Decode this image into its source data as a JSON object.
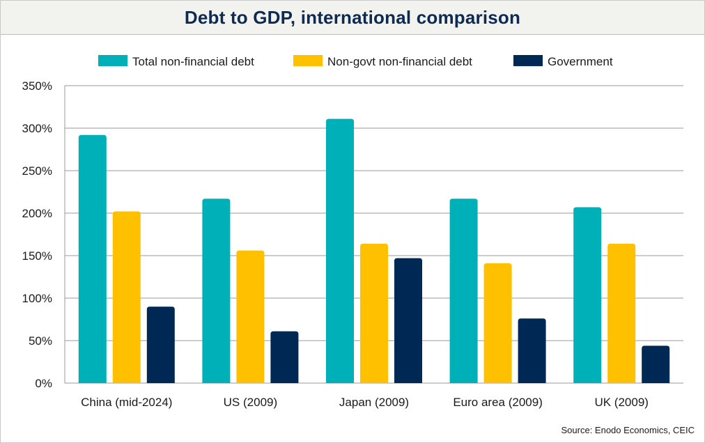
{
  "title": "Debt to GDP, international comparison",
  "source": "Source: Enodo Economics, CEIC",
  "chart_data": {
    "type": "bar",
    "title": "Debt to GDP, international comparison",
    "xlabel": "",
    "ylabel": "",
    "ylim": [
      0,
      350
    ],
    "y_ticks": [
      "0%",
      "50%",
      "100%",
      "150%",
      "200%",
      "250%",
      "300%",
      "350%"
    ],
    "y_tick_values": [
      0,
      50,
      100,
      150,
      200,
      250,
      300,
      350
    ],
    "grid": true,
    "legend_position": "top",
    "categories": [
      "China (mid-2024)",
      "US (2009)",
      "Japan (2009)",
      "Euro area (2009)",
      "UK (2009)"
    ],
    "series": [
      {
        "name": "Total non-financial debt",
        "color": "#00b0b9",
        "values": [
          292,
          217,
          311,
          217,
          207
        ]
      },
      {
        "name": "Non-govt non-financial debt",
        "color": "#ffc000",
        "values": [
          202,
          156,
          164,
          141,
          164
        ]
      },
      {
        "name": "Government",
        "color": "#002855",
        "values": [
          90,
          61,
          147,
          76,
          44
        ]
      }
    ]
  }
}
